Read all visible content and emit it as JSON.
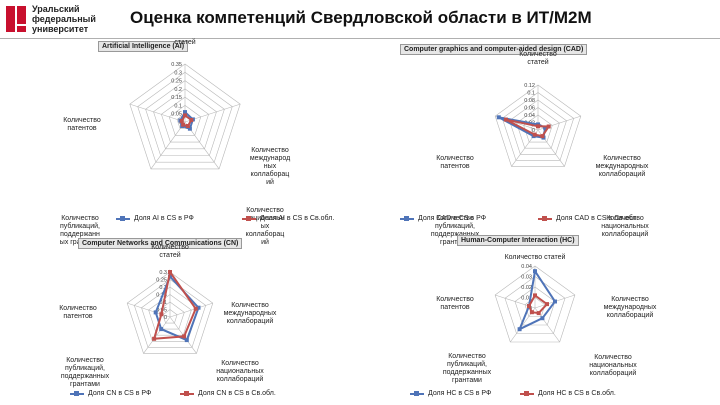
{
  "header": {
    "logo_text": [
      "Уральский",
      "федеральный",
      "университет"
    ],
    "title": "Оценка компетенций Свердловской области в ИТ/М2М"
  },
  "colors": {
    "rf": "#4f74b8",
    "so": "#c0504d",
    "grid": "#b8b8b8"
  },
  "chart_data": [
    {
      "type": "radar",
      "title": "Artificial Intelligence (AI)",
      "axes": [
        "Количество статей",
        "Количество международных коллабораций",
        "Количество национальных коллабораций",
        "Количество публикаций, поддержанных грантами",
        "Количество патентов"
      ],
      "axis_labels": [
        "статей",
        "Количество\nмеждународ\nных\nколлаборац\nий",
        "Количество\nнациональн\nых\nколлаборац\nий",
        "Количество\nпубликаций,\nподдержанн\nых грантами",
        "Количество\nпатентов"
      ],
      "ticks": [
        "0",
        "0.05",
        "0.1",
        "0.15",
        "0.2",
        "0.25",
        "0.3",
        "0.35"
      ],
      "rmax": 0.35,
      "series": [
        {
          "name": "Доля AI в CS в РФ",
          "values": [
            0.06,
            0.05,
            0.05,
            0.03,
            0.03
          ]
        },
        {
          "name": "Доля AI в CS в Св.обл.",
          "values": [
            0.04,
            0.04,
            0.03,
            0.02,
            0.02
          ]
        }
      ]
    },
    {
      "type": "radar",
      "title": "Computer graphics and computer-aided design (CAD)",
      "axes": [
        "Количество статей",
        "Количество международных коллабораций",
        "Количество национальных коллабораций",
        "Количество публикаций, поддержанных грантами",
        "Количество патентов"
      ],
      "axis_labels": [
        "Количество\nстатей",
        "Количество\nмеждународных\nколлабораций",
        "Количество\nнациональных\nколлабораций",
        "Количество\nпубликаций,\nподдержанных\nгрантами",
        "Количество\nпатентов"
      ],
      "ticks": [
        "0",
        "0.02",
        "0.04",
        "0.06",
        "0.08",
        "0.1",
        "0.12"
      ],
      "rmax": 0.12,
      "series": [
        {
          "name": "Доля CAD в CS в РФ",
          "values": [
            0.015,
            0.02,
            0.025,
            0.02,
            0.11
          ]
        },
        {
          "name": "Доля CAD в CS в Св.обл.",
          "values": [
            0.01,
            0.03,
            0.02,
            0.015,
            0.09
          ]
        }
      ]
    },
    {
      "type": "radar",
      "title": "Computer Networks and Communications (CN)",
      "axes": [
        "Количество статей",
        "Количество международных коллабораций",
        "Количество национальных коллабораций",
        "Количество публикаций, поддержанных грантами",
        "Количество патентов"
      ],
      "axis_labels": [
        "Количество\nстатей",
        "Количество\nмеждународных\nколлабораций",
        "Количество\nнациональных\nколлабораций",
        "Количество\nпубликаций,\nподдержанных\nгрантами",
        "Количество\nпатентов"
      ],
      "ticks": [
        "0",
        "0.05",
        "0.1",
        "0.15",
        "0.2",
        "0.25",
        "0.3"
      ],
      "rmax": 0.3,
      "series": [
        {
          "name": "Доля CN в CS в РФ",
          "values": [
            0.27,
            0.2,
            0.19,
            0.1,
            0.1
          ]
        },
        {
          "name": "Доля CN в CS в Св.обл.",
          "values": [
            0.3,
            0.18,
            0.16,
            0.18,
            0.06
          ]
        }
      ]
    },
    {
      "type": "radar",
      "title": "Human-Computer Interaction (HC)",
      "axes": [
        "Количество статей",
        "Количество международных коллабораций",
        "Количество национальных коллабораций",
        "Количество публикаций, поддержанных грантами",
        "Количество патентов"
      ],
      "axis_labels": [
        "Количество статей",
        "Количество\nмеждународных\nколлабораций",
        "Количество\nнациональных\nколлабораций",
        "Количество\nпубликаций,\nподдержанных\nгрантами",
        "Количество\nпатентов"
      ],
      "ticks": [
        "0",
        "0.01",
        "0.02",
        "0.03",
        "0.04"
      ],
      "rmax": 0.04,
      "series": [
        {
          "name": "Доля HC в CS в РФ",
          "values": [
            0.035,
            0.02,
            0.012,
            0.025,
            0.006
          ]
        },
        {
          "name": "Доля HC в CS в Св.обл.",
          "values": [
            0.012,
            0.012,
            0.006,
            0.005,
            0.006
          ]
        }
      ]
    }
  ]
}
